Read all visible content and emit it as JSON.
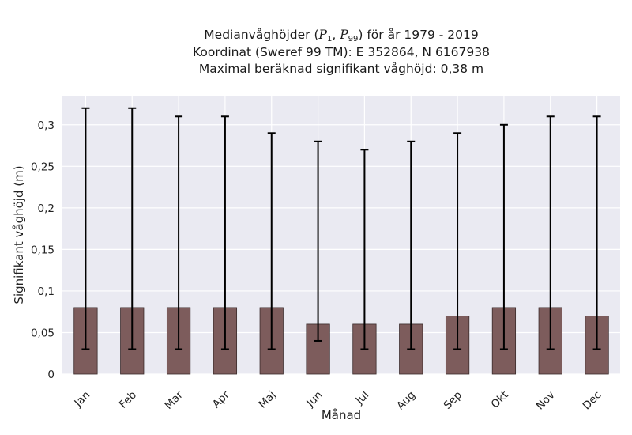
{
  "chart_data": {
    "type": "bar",
    "title_lines": [
      "Medianvåghöjder (P1, P99) för år 1979 - 2019",
      "Koordinat (Sweref 99 TM): E 352864, N 6167938",
      "Maximal beräknad signifikant våghöjd: 0,38 m"
    ],
    "title_parts": {
      "prefix": "Medianvåghöjder (",
      "p1_letter": "P",
      "p1_sub": "1",
      "sep": ", ",
      "p99_letter": "P",
      "p99_sub": "99",
      "suffix": ") för år 1979 - 2019"
    },
    "xlabel": "Månad",
    "ylabel": "Signifikant våghöjd (m)",
    "categories": [
      "Jan",
      "Feb",
      "Mar",
      "Apr",
      "Maj",
      "Jun",
      "Jul",
      "Aug",
      "Sep",
      "Okt",
      "Nov",
      "Dec"
    ],
    "median": [
      0.08,
      0.08,
      0.08,
      0.08,
      0.08,
      0.06,
      0.06,
      0.06,
      0.07,
      0.08,
      0.08,
      0.07
    ],
    "p1": [
      0.03,
      0.03,
      0.03,
      0.03,
      0.03,
      0.04,
      0.03,
      0.03,
      0.03,
      0.03,
      0.03,
      0.03
    ],
    "p99": [
      0.32,
      0.32,
      0.31,
      0.31,
      0.29,
      0.28,
      0.27,
      0.28,
      0.29,
      0.3,
      0.31,
      0.31
    ],
    "yticks": [
      0,
      0.05,
      0.1,
      0.15,
      0.2,
      0.25,
      0.3
    ],
    "ytick_labels": [
      "0",
      "0,05",
      "0,1",
      "0,15",
      "0,2",
      "0,25",
      "0,3"
    ],
    "ylim": [
      0,
      0.335
    ],
    "grid": true,
    "colors": {
      "bar": "#7d5c5c",
      "bar_edge": "#3a2a2a",
      "plot_bg": "#eaeaf2",
      "grid": "#ffffff",
      "errorbar": "#000000"
    }
  }
}
